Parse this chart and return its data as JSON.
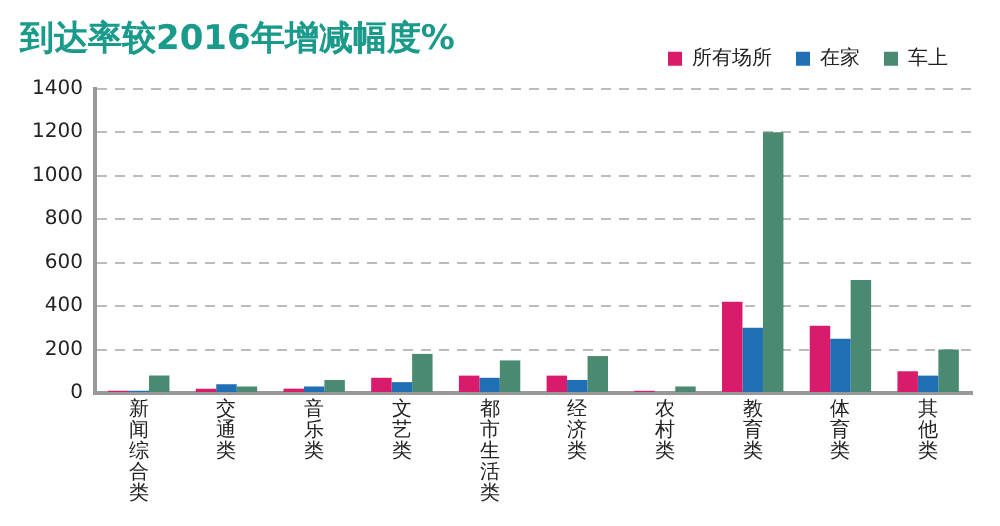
{
  "chart_data": {
    "type": "bar",
    "title": "到达率较2016年增减幅度%",
    "categories": [
      "新闻综合类",
      "交通类",
      "音乐类",
      "文艺类",
      "都市生活类",
      "经济类",
      "农村类",
      "教育类",
      "体育类",
      "其他类"
    ],
    "series": [
      {
        "name": "所有场所",
        "color": "#d81b6a",
        "values": [
          10,
          20,
          20,
          70,
          80,
          80,
          10,
          420,
          310,
          100
        ]
      },
      {
        "name": "在家",
        "color": "#1f6fb5",
        "values": [
          10,
          40,
          30,
          50,
          70,
          60,
          0,
          300,
          250,
          80
        ]
      },
      {
        "name": "车上",
        "color": "#4a8a70",
        "values": [
          80,
          30,
          60,
          180,
          150,
          170,
          30,
          1200,
          520,
          200
        ]
      }
    ],
    "ylim": [
      0,
      1400
    ],
    "yticks": [
      0,
      200,
      400,
      600,
      800,
      1000,
      1200,
      1400
    ],
    "grid": "y",
    "legend": "top right"
  }
}
